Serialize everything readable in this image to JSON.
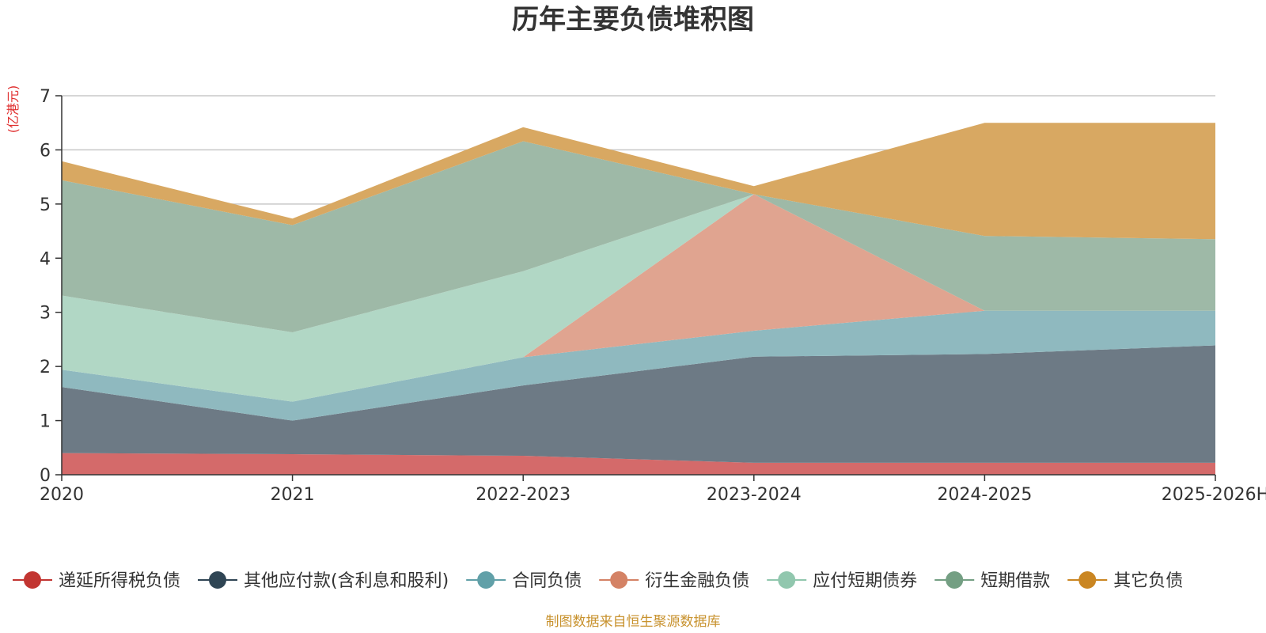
{
  "chart_data": {
    "type": "area",
    "stacked": true,
    "title": "历年主要负债堆积图",
    "unit_label": "(亿港元)",
    "source": "制图数据来自恒生聚源数据库",
    "categories": [
      "2020",
      "2021",
      "2022-2023",
      "2023-2024",
      "2024-2025",
      "2025-2026H"
    ],
    "ylim": [
      0,
      7
    ],
    "yticks": [
      0,
      1,
      2,
      3,
      4,
      5,
      6,
      7
    ],
    "grid": true,
    "legend_position": "bottom",
    "series": [
      {
        "name": "递延所得税负债",
        "color": "#c23531",
        "fill": "#d46a6a",
        "values": [
          0.4,
          0.38,
          0.35,
          0.22,
          0.22,
          0.22
        ]
      },
      {
        "name": "其他应付款(含利息和股利)",
        "color": "#2f4554",
        "fill": "#6d7a85",
        "values": [
          1.22,
          0.62,
          1.3,
          1.96,
          2.01,
          2.17
        ]
      },
      {
        "name": "合同负债",
        "color": "#61a0a8",
        "fill": "#8fb9bf",
        "values": [
          0.32,
          0.35,
          0.52,
          0.48,
          0.8,
          0.64
        ]
      },
      {
        "name": "衍生金融负债",
        "color": "#d48265",
        "fill": "#e0a490",
        "values": [
          0.0,
          0.0,
          0.0,
          2.52,
          0.0,
          0.0
        ]
      },
      {
        "name": "应付短期债券",
        "color": "#91c7ae",
        "fill": "#b1d7c5",
        "values": [
          1.37,
          1.28,
          1.59,
          0.0,
          0.0,
          0.0
        ]
      },
      {
        "name": "短期借款",
        "color": "#749f83",
        "fill": "#9eb9a7",
        "values": [
          2.13,
          1.98,
          2.4,
          0.0,
          1.38,
          1.32
        ]
      },
      {
        "name": "其它负债",
        "color": "#ca8622",
        "fill": "#d8a862",
        "values": [
          0.35,
          0.12,
          0.26,
          0.15,
          2.09,
          2.15
        ]
      }
    ]
  }
}
